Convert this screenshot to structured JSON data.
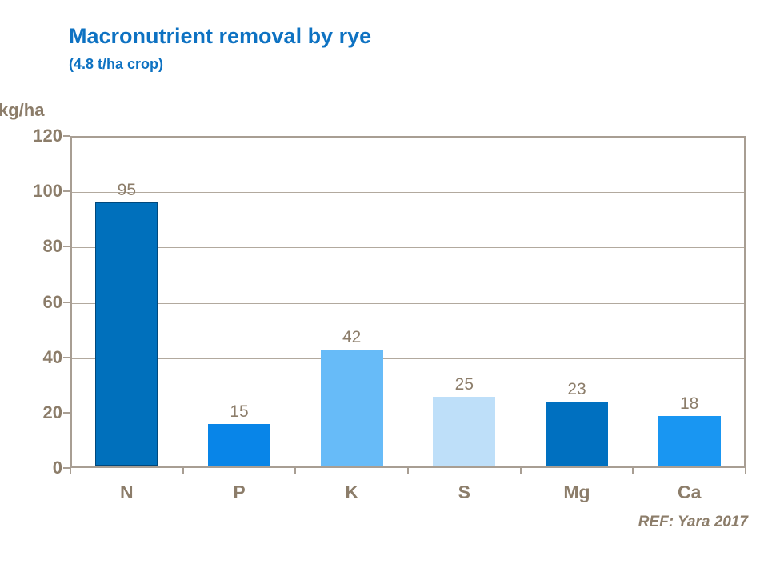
{
  "header": {
    "title": "Macronutrient removal by rye",
    "subtitle": "(4.8 t/ha crop)"
  },
  "footer": {
    "reference": "REF: Yara 2017"
  },
  "colors": {
    "title_blue": "#0E72C2",
    "axis_text_brown": "#8C7D6A",
    "gridline": "#B2A99E",
    "axis_line": "#A89E93"
  },
  "chart_data": {
    "type": "bar",
    "title": "Macronutrient removal by rye",
    "subtitle": "(4.8 t/ha crop)",
    "ylabel": "kg/ha",
    "categories": [
      "N",
      "P",
      "K",
      "S",
      "Mg",
      "Ca"
    ],
    "values": [
      95,
      15,
      42,
      25,
      23,
      18
    ],
    "bar_colors": [
      "#0070BC",
      "#0885E8",
      "#67BBF8",
      "#BEDFF9",
      "#0070C0",
      "#1996F2"
    ],
    "bar_border_colors": [
      "#00487C",
      "none",
      "none",
      "none",
      "none",
      "none"
    ],
    "ylim": [
      0,
      120
    ],
    "yticks": [
      0,
      20,
      40,
      60,
      80,
      100,
      120
    ],
    "grid": true,
    "legend": false,
    "annotation": "REF: Yara 2017"
  }
}
